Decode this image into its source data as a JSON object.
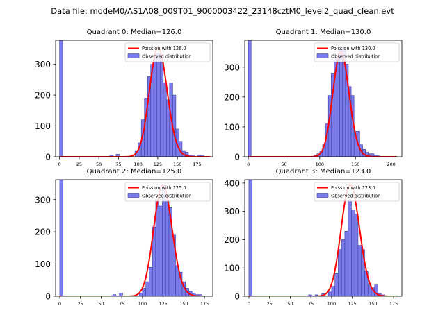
{
  "figure": {
    "suptitle": "Data file: modeM0/AS1A08_009T01_9000003422_23148cztM0_level2_quad_clean.evt"
  },
  "style": {
    "bar_fill": "#7b7bea",
    "bar_edge": "#3a3aa8",
    "line_color": "#ff0000"
  },
  "chart_data": [
    {
      "type": "bar",
      "title": "Quadrant 0: Median=126.0",
      "xlabel": "",
      "ylabel": "",
      "xlim": [
        -5,
        195
      ],
      "ylim": [
        0,
        378
      ],
      "xticks": [
        0,
        25,
        50,
        75,
        100,
        125,
        150,
        175
      ],
      "yticks": [
        0,
        100,
        200,
        300
      ],
      "legend": [
        "Poission with 126.0",
        "Observed distribution"
      ],
      "legend_loc": "upper right",
      "bin_width": 4,
      "series": [
        {
          "name": "Observed distribution",
          "kind": "histogram",
          "bin_starts": [
            0,
            64,
            72,
            96,
            100,
            104,
            108,
            112,
            116,
            120,
            124,
            128,
            132,
            136,
            140,
            144,
            148,
            152,
            156,
            160,
            164,
            168,
            176,
            180
          ],
          "counts": [
            378,
            5,
            8,
            20,
            45,
            120,
            190,
            260,
            300,
            335,
            335,
            320,
            240,
            185,
            240,
            200,
            90,
            50,
            20,
            15,
            5,
            3,
            5,
            3
          ]
        },
        {
          "name": "Poission with 126.0",
          "kind": "line",
          "mean": 126.0,
          "peak": 355,
          "x_range": [
            0,
            192
          ]
        }
      ]
    },
    {
      "type": "bar",
      "title": "Quadrant 1: Median=130.0",
      "xlabel": "",
      "ylabel": "",
      "xlim": [
        -5,
        215
      ],
      "ylim": [
        0,
        390
      ],
      "xticks": [
        0,
        50,
        100,
        150,
        200
      ],
      "yticks": [
        0,
        100,
        200,
        300
      ],
      "legend": [
        "Poission with 130.0",
        "Observed distribution"
      ],
      "legend_loc": "upper right",
      "bin_width": 4,
      "series": [
        {
          "name": "Observed distribution",
          "kind": "histogram",
          "bin_starts": [
            0,
            92,
            96,
            100,
            104,
            108,
            112,
            116,
            120,
            124,
            128,
            132,
            136,
            140,
            144,
            148,
            152,
            156,
            160,
            164,
            168,
            172,
            176,
            180
          ],
          "counts": [
            390,
            5,
            10,
            20,
            40,
            110,
            205,
            280,
            330,
            345,
            360,
            365,
            310,
            235,
            205,
            85,
            85,
            40,
            25,
            15,
            10,
            10,
            5,
            3
          ]
        },
        {
          "name": "Poission with 130.0",
          "kind": "line",
          "mean": 130.0,
          "peak": 350,
          "x_range": [
            0,
            208
          ]
        }
      ]
    },
    {
      "type": "bar",
      "title": "Quadrant 2: Median=125.0",
      "xlabel": "",
      "ylabel": "",
      "xlim": [
        -5,
        185
      ],
      "ylim": [
        0,
        362
      ],
      "xticks": [
        0,
        25,
        50,
        75,
        100,
        125,
        150,
        175
      ],
      "yticks": [
        0,
        100,
        200,
        300
      ],
      "legend": [
        "Poission with 125.0",
        "Observed distribution"
      ],
      "legend_loc": "upper right",
      "bin_width": 4,
      "series": [
        {
          "name": "Observed distribution",
          "kind": "histogram",
          "bin_starts": [
            0,
            64,
            72,
            96,
            100,
            104,
            108,
            112,
            116,
            120,
            124,
            128,
            132,
            136,
            140,
            144,
            148,
            152,
            156,
            160,
            164,
            168
          ],
          "counts": [
            362,
            5,
            10,
            10,
            25,
            45,
            90,
            215,
            300,
            280,
            340,
            300,
            275,
            190,
            95,
            75,
            45,
            25,
            15,
            10,
            5,
            5
          ]
        },
        {
          "name": "Poission with 125.0",
          "kind": "line",
          "mean": 125.0,
          "peak": 345,
          "x_range": [
            0,
            176
          ]
        }
      ]
    },
    {
      "type": "bar",
      "title": "Quadrant 3: Median=123.0",
      "xlabel": "",
      "ylabel": "",
      "xlim": [
        -5,
        185
      ],
      "ylim": [
        0,
        412
      ],
      "xticks": [
        0,
        25,
        50,
        75,
        100,
        125,
        150,
        175
      ],
      "yticks": [
        0,
        100,
        200,
        300,
        400
      ],
      "legend": [
        "Poission with 123.0",
        "Observed distribution"
      ],
      "legend_loc": "upper right",
      "bin_width": 4,
      "series": [
        {
          "name": "Observed distribution",
          "kind": "histogram",
          "bin_starts": [
            0,
            72,
            80,
            88,
            96,
            100,
            104,
            108,
            112,
            116,
            120,
            124,
            128,
            132,
            136,
            140,
            144,
            148,
            152,
            156,
            160
          ],
          "counts": [
            412,
            5,
            5,
            10,
            15,
            35,
            80,
            165,
            200,
            230,
            340,
            305,
            290,
            180,
            165,
            90,
            40,
            30,
            40,
            10,
            5
          ]
        },
        {
          "name": "Poission with 123.0",
          "kind": "line",
          "mean": 123.0,
          "peak": 395,
          "x_range": [
            0,
            180
          ]
        }
      ]
    }
  ]
}
